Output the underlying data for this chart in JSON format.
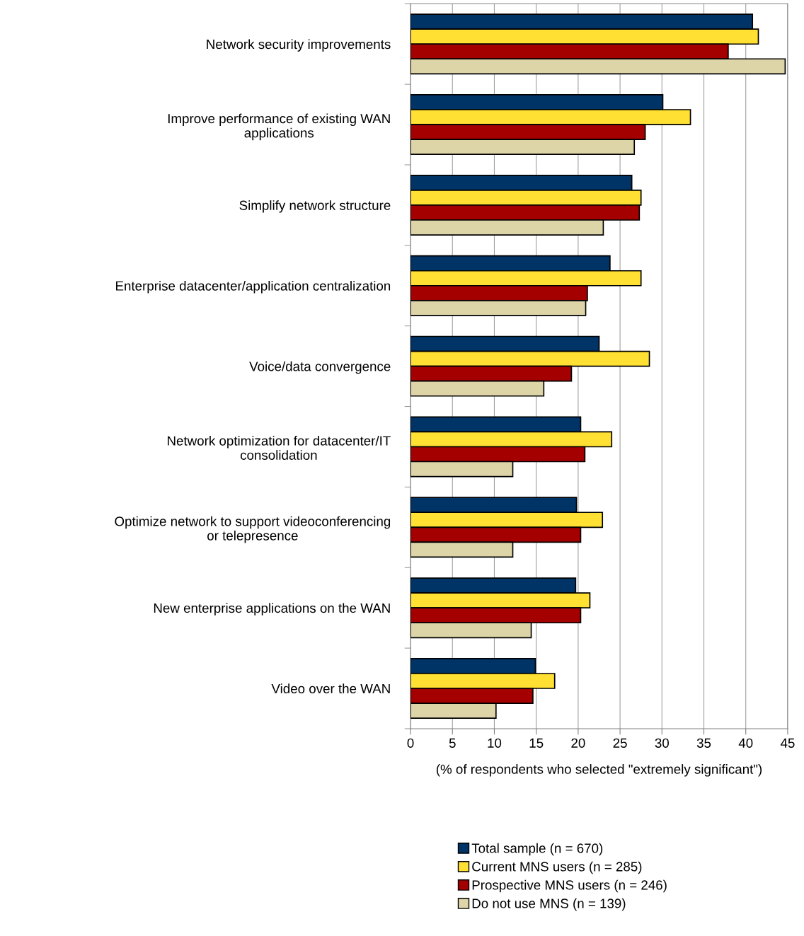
{
  "chart_data": {
    "type": "bar",
    "orientation": "horizontal",
    "xlabel": "(% of respondents who selected \"extremely significant\")",
    "categories": [
      "Network security improvements",
      "Improve performance of existing WAN\napplications",
      "Simplify network structure",
      "Enterprise datacenter/application centralization",
      "Voice/data convergence",
      "Network optimization for datacenter/IT\nconsolidation",
      "Optimize network to support videoconferencing\nor telepresence",
      "New enterprise applications on the WAN",
      "Video over the WAN"
    ],
    "series": [
      {
        "name": "Total sample (n = 670)",
        "color": "#003366",
        "values": [
          40.8,
          30.1,
          26.4,
          23.8,
          22.5,
          20.3,
          19.8,
          19.7,
          14.9
        ]
      },
      {
        "name": "Current MNS users (n = 285)",
        "color": "#ffe033",
        "values": [
          41.5,
          33.4,
          27.5,
          27.5,
          28.5,
          24.0,
          22.9,
          21.4,
          17.2
        ]
      },
      {
        "name": "Prospective MNS users (n = 246)",
        "color": "#a50000",
        "values": [
          37.9,
          28.0,
          27.3,
          21.1,
          19.2,
          20.8,
          20.3,
          20.3,
          14.6
        ]
      },
      {
        "name": "Do not use MNS (n = 139)",
        "color": "#ddd5a8",
        "values": [
          44.7,
          26.7,
          23.0,
          20.9,
          15.9,
          12.2,
          12.2,
          14.4,
          10.2
        ]
      }
    ],
    "xlim": [
      0,
      45
    ],
    "xticks": [
      0,
      5,
      10,
      15,
      20,
      25,
      30,
      35,
      40,
      45
    ],
    "grid": "x",
    "legend": "bottom"
  }
}
